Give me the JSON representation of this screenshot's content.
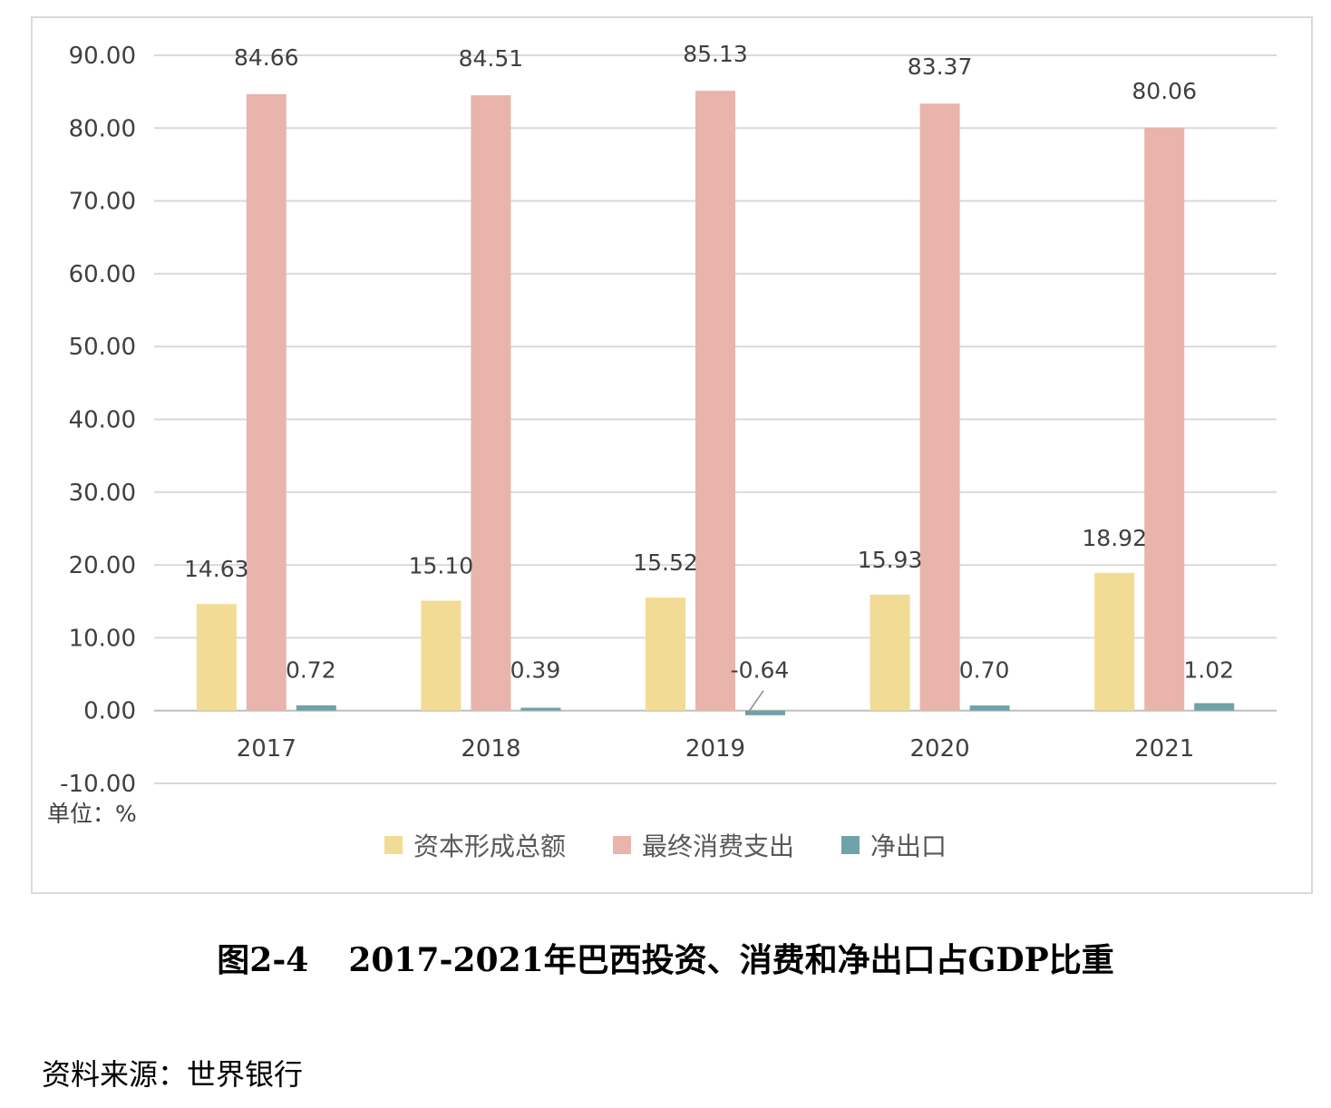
{
  "chart_data": {
    "type": "bar",
    "categories": [
      "2017",
      "2018",
      "2019",
      "2020",
      "2021"
    ],
    "series": [
      {
        "name": "资本形成总额",
        "color": "#f2db94",
        "values": [
          14.63,
          15.1,
          15.52,
          15.93,
          18.92
        ],
        "labels": [
          "14.63",
          "15.10",
          "15.52",
          "15.93",
          "18.92"
        ]
      },
      {
        "name": "最终消费支出",
        "color": "#e8b4ac",
        "values": [
          84.66,
          84.51,
          85.13,
          83.37,
          80.06
        ],
        "labels": [
          "84.66",
          "84.51",
          "85.13",
          "83.37",
          "80.06"
        ]
      },
      {
        "name": "净出口",
        "color": "#6fa2a9",
        "values": [
          0.72,
          0.39,
          -0.64,
          0.7,
          1.02
        ],
        "labels": [
          "0.72",
          "0.39",
          "-0.64",
          "0.70",
          "1.02"
        ]
      }
    ],
    "ylim": [
      -10,
      90
    ],
    "yticks": [
      "90.00",
      "80.00",
      "70.00",
      "60.00",
      "50.00",
      "40.00",
      "30.00",
      "20.00",
      "10.00",
      "0.00",
      "-10.00"
    ],
    "grid": true,
    "legend_position": "bottom"
  },
  "unit_label": "单位：%",
  "caption": {
    "number": "图2-4",
    "title": "2017-2021年巴西投资、消费和净出口占GDP比重"
  },
  "source": "资料来源：世界银行"
}
